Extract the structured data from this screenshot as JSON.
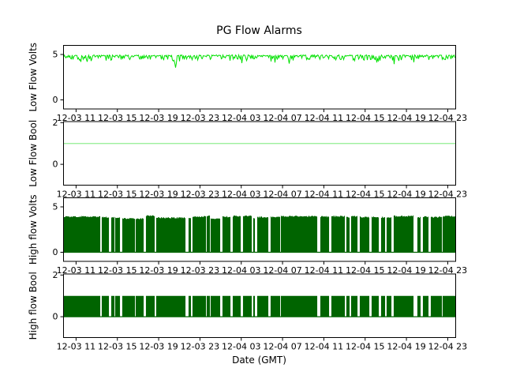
{
  "chart_data": {
    "type": "line",
    "title": "PG Flow Alarms",
    "xlabel": "Date (GMT)",
    "x_tick_labels": [
      "12-03 11",
      "12-03 15",
      "12-03 19",
      "12-03 23",
      "12-04 03",
      "12-04 07",
      "12-04 11",
      "12-04 15",
      "12-04 19",
      "12-04 23"
    ],
    "x_tick_interval": "4 hours",
    "grid": false,
    "legend": "none",
    "subplots": [
      {
        "ylabel": "Low Flow Volts",
        "yticks": [
          0,
          5
        ],
        "ylim": [
          -1.0,
          6.0
        ],
        "color": "#00e100",
        "series": {
          "kind": "noisy_baseline",
          "baseline": 4.9,
          "noise_depth": 0.55,
          "deep_dips": [
            {
              "x_frac": 0.06,
              "value": 4.2
            },
            {
              "x_frac": 0.285,
              "value": 3.55
            },
            {
              "x_frac": 0.575,
              "value": 4.0
            }
          ],
          "seed": 11,
          "description": "signal holds ~4.9 V with frequent short downward noise spikes to ~4.3-4.5 V and one deep dip to ~3.5 V"
        }
      },
      {
        "ylabel": "Low Flow Bool",
        "yticks": [
          0,
          2
        ],
        "ylim": [
          -1.0,
          2.05
        ],
        "color": "#90ee90",
        "series": {
          "kind": "constant",
          "value": 1,
          "description": "constant 1 (no low-flow alarms) across entire time range"
        }
      },
      {
        "ylabel": "High flow Volts",
        "yticks": [
          0,
          5
        ],
        "ylim": [
          -1.0,
          6.0
        ],
        "color": "#006400",
        "series": {
          "kind": "square_wave",
          "low": 0,
          "high": 3.85,
          "high_jitter": 0.18,
          "on_probability": 0.85,
          "seed": 7,
          "description": "rapidly switching between 0 V and ~3.7-4.0 V for the whole range; appears as dense dark-green fill with narrow white gaps"
        }
      },
      {
        "ylabel": "High flow Bool",
        "yticks": [
          0,
          2
        ],
        "ylim": [
          -1.0,
          2.05
        ],
        "color": "#006400",
        "series": {
          "kind": "square_wave",
          "low": 0,
          "high": 1,
          "high_jitter": 0,
          "on_probability": 0.85,
          "seed": 7,
          "description": "boolean alarm toggling 0/1 in the same on/off pattern as High flow Volts"
        }
      }
    ]
  }
}
